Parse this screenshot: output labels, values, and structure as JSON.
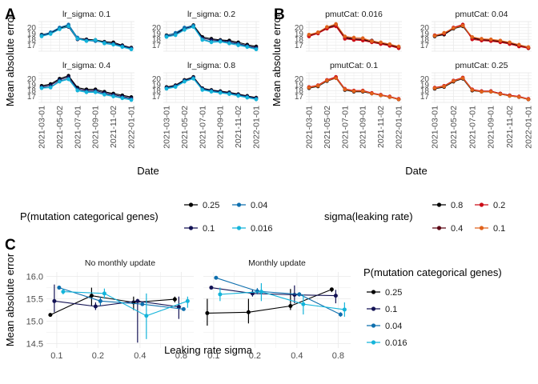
{
  "panel_labels": {
    "A": "A",
    "B": "B",
    "C": "C"
  },
  "shared": {
    "y_label": "Mean absolute error",
    "x_label_date": "Date",
    "x_label_sigma": "Leaking rate sigma",
    "date_ticks": [
      "2021-03-01",
      "2021-05-02",
      "2021-07-01",
      "2021-09-01",
      "2021-11-02",
      "2022-01-01"
    ],
    "ab_y_ticks": [
      "17",
      "18",
      "19",
      "20"
    ],
    "c_y_ticks": [
      "14.5",
      "15.0",
      "15.5",
      "16.0"
    ],
    "c_x_ticks": [
      "0.1",
      "0.2",
      "0.4",
      "0.8"
    ]
  },
  "legends": {
    "A": {
      "title": "P(mutation categorical genes)",
      "entries": [
        "0.25",
        "0.1",
        "0.04",
        "0.016"
      ],
      "colors": [
        "#000000",
        "#131254",
        "#0e6fae",
        "#14b4da"
      ]
    },
    "B": {
      "title": "sigma(leaking rate)",
      "entries": [
        "0.8",
        "0.4",
        "0.2",
        "0.1"
      ],
      "colors": [
        "#000000",
        "#5c0714",
        "#cc0c16",
        "#e0621c"
      ]
    },
    "C": {
      "title": "P(mutation categorical genes)",
      "entries": [
        "0.25",
        "0.1",
        "0.04",
        "0.016"
      ],
      "colors": [
        "#000000",
        "#131254",
        "#0e6fae",
        "#14b4da"
      ]
    }
  },
  "chart_data": [
    {
      "type": "line",
      "panel": "A",
      "xlabel": "Date",
      "ylabel": "Mean absolute error",
      "x": [
        "2021-03-01",
        "2021-04-01",
        "2021-05-02",
        "2021-06-01",
        "2021-07-01",
        "2021-08-01",
        "2021-09-01",
        "2021-10-01",
        "2021-11-02",
        "2021-12-01",
        "2022-01-01"
      ],
      "ylim": [
        16,
        21
      ],
      "facets": [
        {
          "title": "lr_sigma: 0.1",
          "series": [
            {
              "name": "0.25",
              "values": [
                18.8,
                19.1,
                19.9,
                20.3,
                18.2,
                18.0,
                17.9,
                17.6,
                17.5,
                17.0,
                16.6
              ]
            },
            {
              "name": "0.1",
              "values": [
                18.6,
                19.0,
                19.8,
                20.1,
                18.0,
                17.9,
                17.8,
                17.4,
                17.3,
                16.9,
                16.5
              ]
            },
            {
              "name": "0.04",
              "values": [
                18.7,
                19.2,
                20.0,
                20.5,
                18.3,
                17.8,
                17.7,
                17.5,
                17.2,
                16.8,
                16.4
              ]
            },
            {
              "name": "0.016",
              "values": [
                18.5,
                18.9,
                19.7,
                20.2,
                18.1,
                17.7,
                17.9,
                17.3,
                17.1,
                16.7,
                16.3
              ]
            }
          ]
        },
        {
          "title": "lr_sigma: 0.2",
          "series": [
            {
              "name": "0.25",
              "values": [
                18.7,
                19.0,
                19.9,
                20.4,
                18.4,
                18.1,
                17.9,
                17.8,
                17.5,
                17.1,
                16.8
              ]
            },
            {
              "name": "0.1",
              "values": [
                18.5,
                18.8,
                19.8,
                20.2,
                18.2,
                17.9,
                17.8,
                17.6,
                17.3,
                16.9,
                16.6
              ]
            },
            {
              "name": "0.04",
              "values": [
                18.6,
                19.1,
                20.0,
                20.3,
                18.0,
                17.6,
                17.7,
                17.4,
                17.2,
                16.8,
                16.4
              ]
            },
            {
              "name": "0.016",
              "values": [
                18.4,
                18.7,
                19.6,
                20.1,
                17.9,
                17.5,
                17.6,
                17.3,
                17.0,
                16.7,
                16.3
              ]
            }
          ]
        },
        {
          "title": "lr_sigma: 0.4",
          "series": [
            {
              "name": "0.25",
              "values": [
                18.8,
                19.1,
                20.0,
                20.5,
                18.5,
                18.2,
                18.2,
                17.8,
                17.5,
                17.2,
                16.9
              ]
            },
            {
              "name": "0.1",
              "values": [
                18.6,
                18.9,
                19.8,
                20.3,
                18.3,
                18.0,
                18.0,
                17.6,
                17.3,
                17.0,
                16.7
              ]
            },
            {
              "name": "0.04",
              "values": [
                18.5,
                18.6,
                19.6,
                20.0,
                18.1,
                17.8,
                17.8,
                17.4,
                17.1,
                16.8,
                16.5
              ]
            },
            {
              "name": "0.016",
              "values": [
                18.4,
                18.5,
                19.5,
                19.9,
                18.0,
                17.7,
                17.7,
                17.3,
                17.0,
                16.7,
                16.4
              ]
            }
          ]
        },
        {
          "title": "lr_sigma: 0.8",
          "series": [
            {
              "name": "0.25",
              "values": [
                18.6,
                18.9,
                19.8,
                20.3,
                18.4,
                18.1,
                17.9,
                17.7,
                17.4,
                17.1,
                16.8
              ]
            },
            {
              "name": "0.1",
              "values": [
                18.5,
                18.8,
                19.7,
                20.2,
                18.3,
                18.0,
                17.8,
                17.6,
                17.3,
                17.0,
                16.7
              ]
            },
            {
              "name": "0.04",
              "values": [
                18.4,
                18.7,
                19.6,
                20.1,
                18.2,
                17.9,
                17.7,
                17.5,
                17.2,
                16.9,
                16.6
              ]
            },
            {
              "name": "0.016",
              "values": [
                18.3,
                18.6,
                19.5,
                20.0,
                18.1,
                17.8,
                17.6,
                17.4,
                17.1,
                16.8,
                16.5
              ]
            }
          ]
        }
      ]
    },
    {
      "type": "line",
      "panel": "B",
      "xlabel": "Date",
      "ylabel": "Mean absolute error",
      "x": [
        "2021-03-01",
        "2021-04-01",
        "2021-05-02",
        "2021-06-01",
        "2021-07-01",
        "2021-08-01",
        "2021-09-01",
        "2021-10-01",
        "2021-11-02",
        "2021-12-01",
        "2022-01-01"
      ],
      "ylim": [
        16,
        21
      ],
      "facets": [
        {
          "title": "pmutCat: 0.016",
          "series": [
            {
              "name": "0.8",
              "values": [
                18.6,
                19.0,
                19.9,
                20.3,
                18.2,
                18.0,
                17.9,
                17.6,
                17.3,
                17.0,
                16.6
              ]
            },
            {
              "name": "0.4",
              "values": [
                18.7,
                19.1,
                20.0,
                20.5,
                18.4,
                18.1,
                18.0,
                17.8,
                17.4,
                17.1,
                16.7
              ]
            },
            {
              "name": "0.2",
              "values": [
                18.5,
                19.0,
                19.8,
                20.2,
                18.1,
                17.9,
                17.8,
                17.5,
                17.2,
                16.9,
                16.5
              ]
            },
            {
              "name": "0.1",
              "values": [
                18.8,
                19.2,
                20.1,
                20.6,
                18.5,
                18.3,
                18.2,
                17.7,
                17.5,
                17.2,
                16.8
              ]
            }
          ]
        },
        {
          "title": "pmutCat: 0.04",
          "series": [
            {
              "name": "0.8",
              "values": [
                18.5,
                18.8,
                19.8,
                20.2,
                18.2,
                17.9,
                17.8,
                17.6,
                17.3,
                16.9,
                16.5
              ]
            },
            {
              "name": "0.4",
              "values": [
                18.6,
                18.9,
                19.9,
                20.4,
                18.3,
                18.0,
                17.9,
                17.7,
                17.4,
                17.0,
                16.6
              ]
            },
            {
              "name": "0.2",
              "values": [
                18.7,
                19.0,
                20.0,
                20.5,
                18.0,
                17.8,
                17.7,
                17.5,
                17.2,
                16.8,
                16.5
              ]
            },
            {
              "name": "0.1",
              "values": [
                18.6,
                19.1,
                19.9,
                20.3,
                18.4,
                18.1,
                18.0,
                17.8,
                17.5,
                17.1,
                16.7
              ]
            }
          ]
        },
        {
          "title": "pmutCat: 0.1",
          "series": [
            {
              "name": "0.8",
              "values": [
                18.4,
                18.7,
                19.6,
                20.1,
                18.1,
                17.8,
                17.8,
                17.5,
                17.2,
                16.9,
                16.5
              ]
            },
            {
              "name": "0.4",
              "values": [
                18.5,
                18.8,
                19.7,
                20.2,
                18.2,
                17.9,
                17.9,
                17.5,
                17.2,
                16.9,
                16.5
              ]
            },
            {
              "name": "0.2",
              "values": [
                18.6,
                18.9,
                19.8,
                20.3,
                18.3,
                18.0,
                18.0,
                17.6,
                17.3,
                17.0,
                16.6
              ]
            },
            {
              "name": "0.1",
              "values": [
                18.5,
                18.8,
                19.7,
                20.1,
                18.2,
                17.9,
                17.9,
                17.5,
                17.2,
                16.9,
                16.5
              ]
            }
          ]
        },
        {
          "title": "pmutCat: 0.25",
          "series": [
            {
              "name": "0.8",
              "values": [
                18.3,
                18.6,
                19.5,
                20.0,
                18.0,
                17.8,
                17.8,
                17.4,
                17.1,
                16.9,
                16.5
              ]
            },
            {
              "name": "0.4",
              "values": [
                18.4,
                18.7,
                19.6,
                20.1,
                18.1,
                17.9,
                17.9,
                17.5,
                17.2,
                16.9,
                16.5
              ]
            },
            {
              "name": "0.2",
              "values": [
                18.5,
                18.8,
                19.7,
                20.2,
                18.2,
                17.9,
                17.9,
                17.5,
                17.2,
                17.0,
                16.6
              ]
            },
            {
              "name": "0.1",
              "values": [
                18.4,
                18.7,
                19.6,
                20.1,
                18.1,
                17.8,
                17.8,
                17.4,
                17.1,
                16.9,
                16.5
              ]
            }
          ]
        }
      ]
    },
    {
      "type": "line",
      "panel": "C",
      "xlabel": "Leaking rate sigma",
      "ylabel": "Mean absolute error",
      "x": [
        "0.1",
        "0.2",
        "0.4",
        "0.8"
      ],
      "ylim": [
        14.4,
        16.1
      ],
      "facets": [
        {
          "title": "No monthly update",
          "series": [
            {
              "name": "0.25",
              "values": [
                15.14,
                15.57,
                15.42,
                15.49
              ],
              "errors": [
                [
                  15.14,
                  15.14
                ],
                [
                  15.35,
                  15.75
                ],
                [
                  15.25,
                  15.55
                ],
                [
                  15.42,
                  15.55
                ]
              ]
            },
            {
              "name": "0.1",
              "values": [
                15.45,
                15.33,
                15.45,
                15.32
              ],
              "errors": [
                [
                  15.2,
                  15.82
                ],
                [
                  15.25,
                  15.42
                ],
                [
                  14.52,
                  15.5
                ],
                [
                  15.05,
                  15.55
                ]
              ]
            },
            {
              "name": "0.04",
              "values": [
                15.75,
                15.45,
                15.38,
                15.27
              ],
              "errors": [
                [
                  15.75,
                  15.75
                ],
                [
                  15.35,
                  15.55
                ],
                [
                  15.35,
                  15.4
                ],
                [
                  15.25,
                  15.3
                ]
              ]
            },
            {
              "name": "0.016",
              "values": [
                15.66,
                15.62,
                15.12,
                15.45
              ],
              "errors": [
                [
                  15.6,
                  15.72
                ],
                [
                  15.5,
                  15.73
                ],
                [
                  14.6,
                  15.62
                ],
                [
                  15.3,
                  15.55
                ]
              ]
            }
          ]
        },
        {
          "title": "Monthly update",
          "series": [
            {
              "name": "0.25",
              "values": [
                15.18,
                15.2,
                15.34,
                15.71
              ],
              "errors": [
                [
                  14.9,
                  15.5
                ],
                [
                  14.95,
                  15.5
                ],
                [
                  15.25,
                  15.72
                ],
                [
                  15.65,
                  15.75
                ]
              ]
            },
            {
              "name": "0.1",
              "values": [
                15.75,
                15.62,
                15.59,
                15.57
              ],
              "errors": [
                [
                  15.75,
                  15.75
                ],
                [
                  15.55,
                  15.7
                ],
                [
                  15.4,
                  15.8
                ],
                [
                  15.4,
                  15.7
                ]
              ]
            },
            {
              "name": "0.04",
              "values": [
                15.97,
                15.67,
                15.6,
                15.15
              ],
              "errors": [
                [
                  15.97,
                  15.97
                ],
                [
                  15.6,
                  15.74
                ],
                [
                  15.55,
                  15.65
                ],
                [
                  15.1,
                  15.2
                ]
              ]
            },
            {
              "name": "0.016",
              "values": [
                15.6,
                15.66,
                15.38,
                15.26
              ],
              "errors": [
                [
                  15.45,
                  15.75
                ],
                [
                  15.45,
                  15.85
                ],
                [
                  15.15,
                  15.6
                ],
                [
                  15.1,
                  15.42
                ]
              ]
            }
          ]
        }
      ]
    }
  ]
}
